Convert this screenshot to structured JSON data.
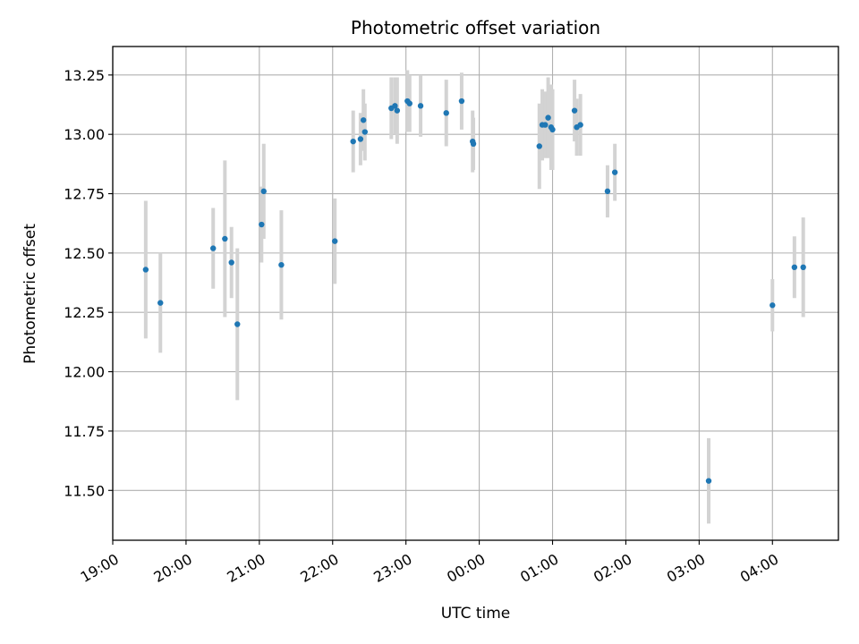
{
  "chart_data": {
    "type": "scatter",
    "title": "Photometric offset variation",
    "xlabel": "UTC time",
    "ylabel": "Photometric offset",
    "x_unit": "hours after 19:00 UTC",
    "xlim": [
      0,
      9.9
    ],
    "ylim": [
      11.29,
      13.37
    ],
    "grid": true,
    "x_ticks": [
      {
        "value": 0,
        "label": "19:00"
      },
      {
        "value": 1,
        "label": "20:00"
      },
      {
        "value": 2,
        "label": "21:00"
      },
      {
        "value": 3,
        "label": "22:00"
      },
      {
        "value": 4,
        "label": "23:00"
      },
      {
        "value": 5,
        "label": "00:00"
      },
      {
        "value": 6,
        "label": "01:00"
      },
      {
        "value": 7,
        "label": "02:00"
      },
      {
        "value": 8,
        "label": "03:00"
      },
      {
        "value": 9,
        "label": "04:00"
      }
    ],
    "y_ticks": [
      {
        "value": 11.5,
        "label": "11.50"
      },
      {
        "value": 11.75,
        "label": "11.75"
      },
      {
        "value": 12.0,
        "label": "12.00"
      },
      {
        "value": 12.25,
        "label": "12.25"
      },
      {
        "value": 12.5,
        "label": "12.50"
      },
      {
        "value": 12.75,
        "label": "12.75"
      },
      {
        "value": 13.0,
        "label": "13.00"
      },
      {
        "value": 13.25,
        "label": "13.25"
      }
    ],
    "series": [
      {
        "marker_color": "#1f77b4",
        "errorbar_color": "#d3d3d3",
        "points": [
          {
            "x": 0.45,
            "y": 12.43,
            "yerr": 0.29
          },
          {
            "x": 0.65,
            "y": 12.29,
            "yerr": 0.21
          },
          {
            "x": 1.37,
            "y": 12.52,
            "yerr": 0.17
          },
          {
            "x": 1.53,
            "y": 12.56,
            "yerr": 0.33
          },
          {
            "x": 1.62,
            "y": 12.46,
            "yerr": 0.15
          },
          {
            "x": 1.7,
            "y": 12.2,
            "yerr": 0.32
          },
          {
            "x": 2.03,
            "y": 12.62,
            "yerr": 0.16
          },
          {
            "x": 2.06,
            "y": 12.76,
            "yerr": 0.2
          },
          {
            "x": 2.3,
            "y": 12.45,
            "yerr": 0.23
          },
          {
            "x": 3.03,
            "y": 12.55,
            "yerr": 0.18
          },
          {
            "x": 3.28,
            "y": 12.97,
            "yerr": 0.13
          },
          {
            "x": 3.38,
            "y": 12.98,
            "yerr": 0.11
          },
          {
            "x": 3.42,
            "y": 13.06,
            "yerr": 0.13
          },
          {
            "x": 3.44,
            "y": 13.01,
            "yerr": 0.12
          },
          {
            "x": 3.8,
            "y": 13.11,
            "yerr": 0.13
          },
          {
            "x": 3.85,
            "y": 13.12,
            "yerr": 0.12
          },
          {
            "x": 3.88,
            "y": 13.1,
            "yerr": 0.14
          },
          {
            "x": 4.02,
            "y": 13.14,
            "yerr": 0.13
          },
          {
            "x": 4.05,
            "y": 13.13,
            "yerr": 0.12
          },
          {
            "x": 4.2,
            "y": 13.12,
            "yerr": 0.13
          },
          {
            "x": 4.55,
            "y": 13.09,
            "yerr": 0.14
          },
          {
            "x": 4.76,
            "y": 13.14,
            "yerr": 0.12
          },
          {
            "x": 4.91,
            "y": 12.97,
            "yerr": 0.13
          },
          {
            "x": 4.92,
            "y": 12.96,
            "yerr": 0.11
          },
          {
            "x": 5.82,
            "y": 12.95,
            "yerr": 0.18
          },
          {
            "x": 5.86,
            "y": 13.04,
            "yerr": 0.15
          },
          {
            "x": 5.9,
            "y": 13.04,
            "yerr": 0.14
          },
          {
            "x": 5.94,
            "y": 13.07,
            "yerr": 0.17
          },
          {
            "x": 5.98,
            "y": 13.03,
            "yerr": 0.18
          },
          {
            "x": 6.0,
            "y": 13.02,
            "yerr": 0.17
          },
          {
            "x": 6.3,
            "y": 13.1,
            "yerr": 0.13
          },
          {
            "x": 6.33,
            "y": 13.03,
            "yerr": 0.12
          },
          {
            "x": 6.38,
            "y": 13.04,
            "yerr": 0.13
          },
          {
            "x": 6.75,
            "y": 12.76,
            "yerr": 0.11
          },
          {
            "x": 6.85,
            "y": 12.84,
            "yerr": 0.12
          },
          {
            "x": 8.13,
            "y": 11.54,
            "yerr": 0.18
          },
          {
            "x": 9.0,
            "y": 12.28,
            "yerr": 0.11
          },
          {
            "x": 9.3,
            "y": 12.44,
            "yerr": 0.13
          },
          {
            "x": 9.42,
            "y": 12.44,
            "yerr": 0.21
          }
        ]
      }
    ]
  }
}
